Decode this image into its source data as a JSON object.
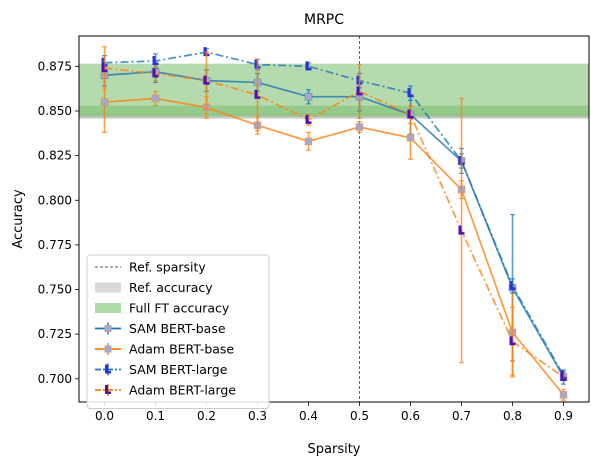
{
  "chart_data": {
    "type": "line",
    "title": "MRPC",
    "xlabel": "Sparsity",
    "ylabel": "Accuracy",
    "xlim": [
      -0.05,
      0.95
    ],
    "ylim": [
      0.687,
      0.892
    ],
    "x_ticks": [
      0.0,
      0.1,
      0.2,
      0.3,
      0.4,
      0.5,
      0.6,
      0.7,
      0.8,
      0.9
    ],
    "x_tick_labels": [
      "0.0",
      "0.1",
      "0.2",
      "0.3",
      "0.4",
      "0.5",
      "0.6",
      "0.7",
      "0.8",
      "0.9"
    ],
    "y_ticks": [
      0.7,
      0.725,
      0.75,
      0.775,
      0.8,
      0.825,
      0.85,
      0.875
    ],
    "y_tick_labels": [
      "0.700",
      "0.725",
      "0.750",
      "0.775",
      "0.800",
      "0.825",
      "0.850",
      "0.875"
    ],
    "ref_sparsity": 0.5,
    "ref_accuracy_band": [
      0.8455,
      0.8485
    ],
    "full_ft_band": [
      0.8465,
      0.8765
    ],
    "full_ft_inner_band": [
      0.848,
      0.853
    ],
    "series": [
      {
        "name": "SAM BERT-base",
        "color": "#1f77b4",
        "linestyle": "solid",
        "marker_color": "#a8a8c8",
        "x": [
          0.0,
          0.1,
          0.2,
          0.3,
          0.4,
          0.5,
          0.6,
          0.7,
          0.8,
          0.9
        ],
        "y": [
          0.87,
          0.872,
          0.867,
          0.866,
          0.858,
          0.858,
          0.848,
          0.822,
          0.751,
          0.701
        ],
        "err": [
          0.006,
          0.006,
          0.006,
          0.005,
          0.004,
          0.008,
          0.011,
          0.007,
          0.041,
          0.004
        ]
      },
      {
        "name": "Adam BERT-base",
        "color": "#ff7f0e",
        "linestyle": "solid",
        "marker_color": "#a8a8c8",
        "x": [
          0.0,
          0.1,
          0.2,
          0.3,
          0.4,
          0.5,
          0.6,
          0.7,
          0.8,
          0.9
        ],
        "y": [
          0.855,
          0.857,
          0.852,
          0.842,
          0.833,
          0.841,
          0.835,
          0.806,
          0.726,
          0.691
        ],
        "err": [
          0.017,
          0.004,
          0.006,
          0.005,
          0.005,
          0.003,
          0.012,
          0.005,
          0.025,
          0.003
        ]
      },
      {
        "name": "SAM BERT-large",
        "color": "#1f77b4",
        "linestyle": "dashdot",
        "marker_color": "#3030d8",
        "x": [
          0.0,
          0.1,
          0.2,
          0.3,
          0.4,
          0.5,
          0.6,
          0.7,
          0.8,
          0.9
        ],
        "y": [
          0.877,
          0.878,
          0.883,
          0.876,
          0.875,
          0.867,
          0.86,
          0.822,
          0.752,
          0.702
        ],
        "err": [
          0.004,
          0.004,
          0.002,
          0.003,
          0.002,
          0.004,
          0.004,
          0.004,
          0.004,
          0.002
        ]
      },
      {
        "name": "Adam BERT-large",
        "color": "#ff7f0e",
        "linestyle": "dashdot",
        "marker_color": "#5010b8",
        "x": [
          0.0,
          0.1,
          0.2,
          0.3,
          0.4,
          0.5,
          0.6,
          0.7,
          0.8,
          0.9
        ],
        "y": [
          0.874,
          0.871,
          0.867,
          0.859,
          0.845,
          0.861,
          0.848,
          0.783,
          0.721,
          0.701
        ],
        "err": [
          0.012,
          0.004,
          0.016,
          0.02,
          0.003,
          0.015,
          0.005,
          0.074,
          0.019,
          0.002
        ]
      }
    ],
    "legend": {
      "placement": "lower-left",
      "entries": [
        {
          "label": "Ref. sparsity",
          "kind": "vline",
          "color": "#555555"
        },
        {
          "label": "Ref. accuracy",
          "kind": "patch",
          "color": "#d9d9d9"
        },
        {
          "label": "Full FT accuracy",
          "kind": "patch",
          "color": "#b2dbaa"
        },
        {
          "label": "SAM BERT-base",
          "kind": "series",
          "series_index": 0
        },
        {
          "label": "Adam BERT-base",
          "kind": "series",
          "series_index": 1
        },
        {
          "label": "SAM BERT-large",
          "kind": "series",
          "series_index": 2
        },
        {
          "label": "Adam BERT-large",
          "kind": "series",
          "series_index": 3
        }
      ]
    }
  }
}
